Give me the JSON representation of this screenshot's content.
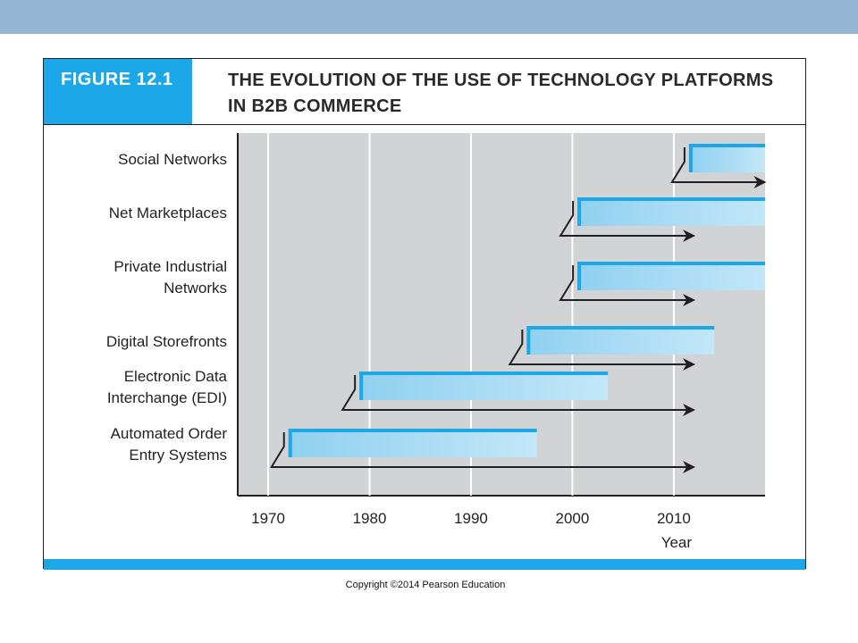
{
  "figure": {
    "label": "FIGURE 12.1",
    "title_line1": "THE EVOLUTION OF THE USE OF TECHNOLOGY PLATFORMS",
    "title_line2": "IN B2B COMMERCE"
  },
  "copyright": "Copyright ©2014 Pearson Education",
  "chart_data": {
    "type": "bar",
    "orientation": "horizontal-timeline",
    "title": "THE EVOLUTION OF THE USE OF TECHNOLOGY PLATFORMS IN B2B COMMERCE",
    "xlabel": "Year",
    "xlim": [
      1967,
      2019
    ],
    "xticks": [
      "1970",
      "1980",
      "1990",
      "2000",
      "2010"
    ],
    "grid": "vertical",
    "categories": [
      [
        "Social Networks"
      ],
      [
        "Net Marketplaces"
      ],
      [
        "Private Industrial",
        "Networks"
      ],
      [
        "Digital Storefronts"
      ],
      [
        "Electronic Data ",
        "Interchange (EDI)"
      ],
      [
        "Automated Order",
        "Entry Systems"
      ]
    ],
    "series": [
      {
        "start": 2011.5,
        "end": 2019,
        "arrow_end": 2019
      },
      {
        "start": 2000.5,
        "end": 2019,
        "arrow_end": 2012
      },
      {
        "start": 2000.5,
        "end": 2019,
        "arrow_end": 2012
      },
      {
        "start": 1995.5,
        "end": 2014,
        "arrow_end": 2012
      },
      {
        "start": 1979,
        "end": 2003.5,
        "arrow_end": 2012
      },
      {
        "start": 1972,
        "end": 1996.5,
        "arrow_end": 2012
      }
    ],
    "colors": {
      "plot_bg": "#d1d3d4",
      "bar_fill": "#a3d9f3",
      "bar_edge": "#1ca8e8",
      "grid": "#ffffff",
      "arrow": "#231f20"
    }
  }
}
